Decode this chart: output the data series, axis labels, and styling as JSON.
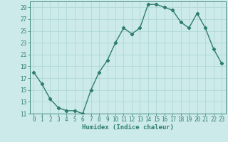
{
  "title": "",
  "xlabel": "Humidex (Indice chaleur)",
  "ylabel": "",
  "x": [
    0,
    1,
    2,
    3,
    4,
    5,
    6,
    7,
    8,
    9,
    10,
    11,
    12,
    13,
    14,
    15,
    16,
    17,
    18,
    19,
    20,
    21,
    22,
    23
  ],
  "y": [
    18,
    16,
    13.5,
    12,
    11.5,
    11.5,
    11,
    15,
    18,
    20,
    23,
    25.5,
    24.5,
    25.5,
    29.5,
    29.5,
    29,
    28.5,
    26.5,
    25.5,
    28,
    25.5,
    22,
    19.5
  ],
  "line_color": "#2e7d6e",
  "marker": "D",
  "marker_size": 2.2,
  "bg_color": "#cceaea",
  "grid_color": "#aad4d4",
  "ylim": [
    11,
    30
  ],
  "xlim": [
    -0.5,
    23.5
  ],
  "yticks": [
    11,
    13,
    15,
    17,
    19,
    21,
    23,
    25,
    27,
    29
  ],
  "xticks": [
    0,
    1,
    2,
    3,
    4,
    5,
    6,
    7,
    8,
    9,
    10,
    11,
    12,
    13,
    14,
    15,
    16,
    17,
    18,
    19,
    20,
    21,
    22,
    23
  ],
  "tick_fontsize": 5.5,
  "xlabel_fontsize": 6.5,
  "line_width": 1.0
}
